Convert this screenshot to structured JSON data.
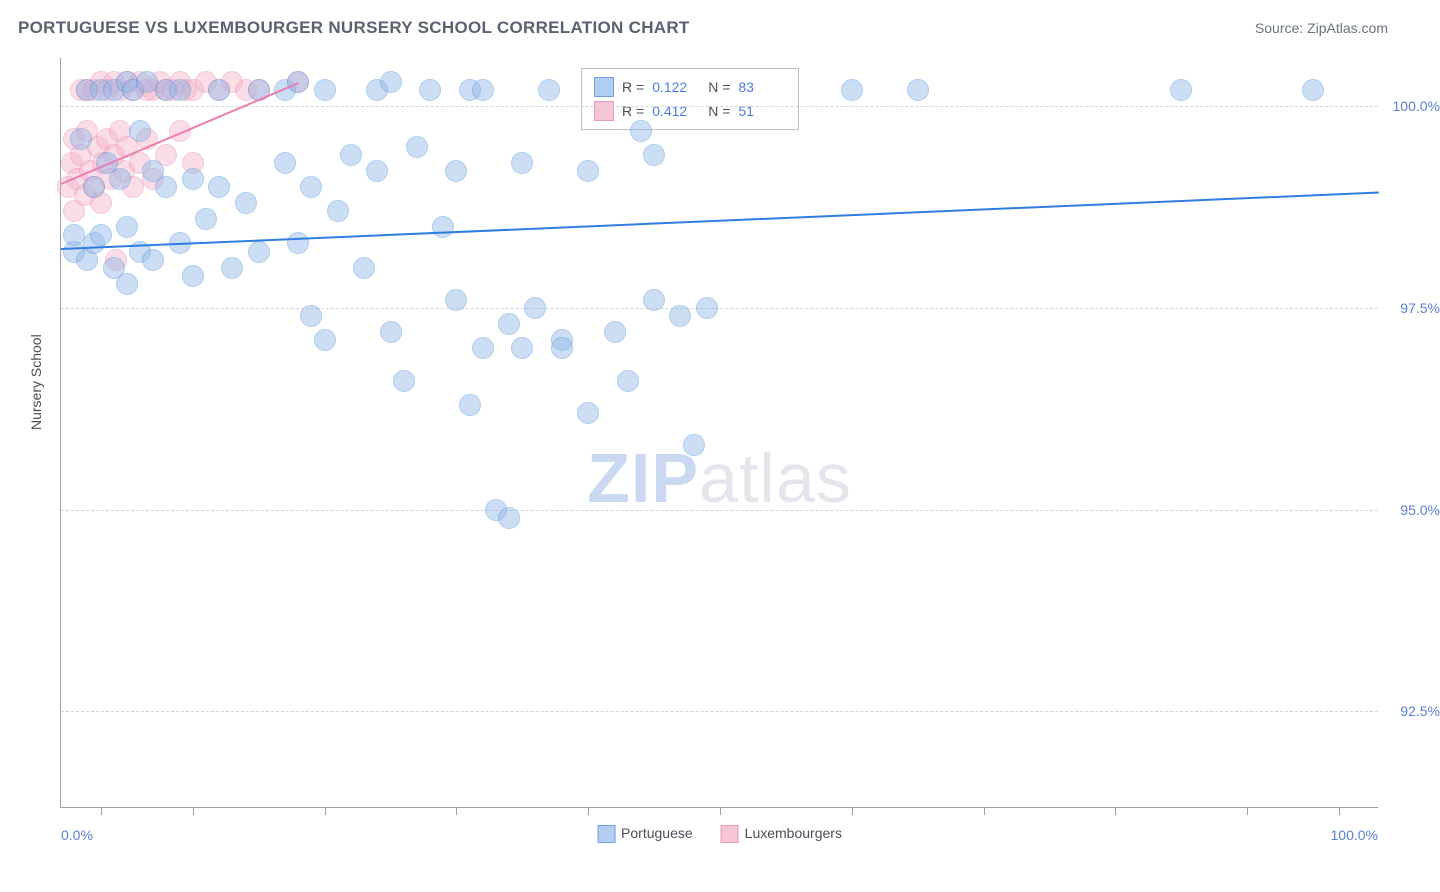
{
  "title": "PORTUGUESE VS LUXEMBOURGER NURSERY SCHOOL CORRELATION CHART",
  "source": "Source: ZipAtlas.com",
  "chart": {
    "type": "scatter",
    "ylabel": "Nursery School",
    "xlim": [
      0,
      100
    ],
    "ylim": [
      91.3,
      100.6
    ],
    "xaxis_labels": {
      "min": "0.0%",
      "max": "100.0%"
    },
    "xticks_pct": [
      3,
      10,
      20,
      30,
      40,
      50,
      60,
      70,
      80,
      90,
      97
    ],
    "yticks": [
      {
        "v": 92.5,
        "label": "92.5%"
      },
      {
        "v": 95.0,
        "label": "95.0%"
      },
      {
        "v": 97.5,
        "label": "97.5%"
      },
      {
        "v": 100.0,
        "label": "100.0%"
      }
    ],
    "background_color": "#ffffff",
    "grid_color": "#d3d6db",
    "axis_color": "#9aa0a8",
    "marker_radius": 11,
    "marker_opacity": 0.45,
    "series": [
      {
        "name": "Portuguese",
        "fill": "#8fb7e8",
        "stroke": "#4a90d9",
        "line_color": "#2f7de1",
        "R": "0.122",
        "N": "83",
        "regression": {
          "x0": 0,
          "y0": 98.25,
          "x1": 100,
          "y1": 98.95
        },
        "points": [
          [
            1,
            98.2
          ],
          [
            1,
            98.4
          ],
          [
            1.5,
            99.6
          ],
          [
            2,
            98.1
          ],
          [
            2,
            100.2
          ],
          [
            2.5,
            99.0
          ],
          [
            2.5,
            98.3
          ],
          [
            3,
            100.2
          ],
          [
            3,
            98.4
          ],
          [
            3.5,
            99.3
          ],
          [
            4,
            100.2
          ],
          [
            4,
            98.0
          ],
          [
            4.5,
            99.1
          ],
          [
            5,
            100.3
          ],
          [
            5,
            98.5
          ],
          [
            5,
            97.8
          ],
          [
            5.5,
            100.2
          ],
          [
            6,
            99.7
          ],
          [
            6,
            98.2
          ],
          [
            6.5,
            100.3
          ],
          [
            7,
            99.2
          ],
          [
            7,
            98.1
          ],
          [
            8,
            100.2
          ],
          [
            8,
            99.0
          ],
          [
            9,
            98.3
          ],
          [
            9,
            100.2
          ],
          [
            10,
            99.1
          ],
          [
            10,
            97.9
          ],
          [
            11,
            98.6
          ],
          [
            12,
            99.0
          ],
          [
            12,
            100.2
          ],
          [
            13,
            98.0
          ],
          [
            14,
            98.8
          ],
          [
            15,
            98.2
          ],
          [
            15,
            100.2
          ],
          [
            17,
            100.2
          ],
          [
            17,
            99.3
          ],
          [
            18,
            98.3
          ],
          [
            18,
            100.3
          ],
          [
            19,
            99.0
          ],
          [
            19,
            97.4
          ],
          [
            20,
            97.1
          ],
          [
            20,
            100.2
          ],
          [
            21,
            98.7
          ],
          [
            22,
            99.4
          ],
          [
            23,
            98.0
          ],
          [
            24,
            100.2
          ],
          [
            24,
            99.2
          ],
          [
            25,
            97.2
          ],
          [
            25,
            100.3
          ],
          [
            26,
            96.6
          ],
          [
            27,
            99.5
          ],
          [
            28,
            100.2
          ],
          [
            29,
            98.5
          ],
          [
            30,
            99.2
          ],
          [
            30,
            97.6
          ],
          [
            31,
            100.2
          ],
          [
            31,
            96.3
          ],
          [
            32,
            97.0
          ],
          [
            32,
            100.2
          ],
          [
            33,
            95.0
          ],
          [
            34,
            97.3
          ],
          [
            34,
            94.9
          ],
          [
            35,
            99.3
          ],
          [
            35,
            97.0
          ],
          [
            36,
            97.5
          ],
          [
            37,
            100.2
          ],
          [
            38,
            97.1
          ],
          [
            38,
            97.0
          ],
          [
            40,
            96.2
          ],
          [
            40,
            99.2
          ],
          [
            42,
            97.2
          ],
          [
            43,
            96.6
          ],
          [
            44,
            99.7
          ],
          [
            45,
            97.6
          ],
          [
            45,
            99.4
          ],
          [
            47,
            97.4
          ],
          [
            48,
            95.8
          ],
          [
            49,
            97.5
          ],
          [
            60,
            100.2
          ],
          [
            65,
            100.2
          ],
          [
            85,
            100.2
          ],
          [
            95,
            100.2
          ]
        ]
      },
      {
        "name": "Luxembourgers",
        "fill": "#f4b5cb",
        "stroke": "#e787ab",
        "line_color": "#ea7fb0",
        "R": "0.412",
        "N": "51",
        "regression": {
          "x0": 0,
          "y0": 99.05,
          "x1": 18,
          "y1": 100.3
        },
        "points": [
          [
            0.5,
            99.0
          ],
          [
            0.8,
            99.3
          ],
          [
            1,
            99.6
          ],
          [
            1,
            98.7
          ],
          [
            1.2,
            99.1
          ],
          [
            1.5,
            100.2
          ],
          [
            1.5,
            99.4
          ],
          [
            1.8,
            98.9
          ],
          [
            2,
            100.2
          ],
          [
            2,
            99.7
          ],
          [
            2.2,
            99.2
          ],
          [
            2.5,
            100.2
          ],
          [
            2.5,
            99.0
          ],
          [
            2.8,
            99.5
          ],
          [
            3,
            100.3
          ],
          [
            3,
            98.8
          ],
          [
            3.2,
            99.3
          ],
          [
            3.5,
            100.2
          ],
          [
            3.5,
            99.6
          ],
          [
            3.8,
            99.1
          ],
          [
            4,
            100.3
          ],
          [
            4,
            99.4
          ],
          [
            4.2,
            98.1
          ],
          [
            4.5,
            100.2
          ],
          [
            4.5,
            99.7
          ],
          [
            4.8,
            99.2
          ],
          [
            5,
            100.3
          ],
          [
            5,
            99.5
          ],
          [
            5.5,
            100.2
          ],
          [
            5.5,
            99.0
          ],
          [
            6,
            100.3
          ],
          [
            6,
            99.3
          ],
          [
            6.5,
            100.2
          ],
          [
            6.5,
            99.6
          ],
          [
            7,
            100.2
          ],
          [
            7,
            99.1
          ],
          [
            7.5,
            100.3
          ],
          [
            8,
            100.2
          ],
          [
            8,
            99.4
          ],
          [
            8.5,
            100.2
          ],
          [
            9,
            99.7
          ],
          [
            9,
            100.3
          ],
          [
            9.5,
            100.2
          ],
          [
            10,
            99.3
          ],
          [
            10,
            100.2
          ],
          [
            11,
            100.3
          ],
          [
            12,
            100.2
          ],
          [
            13,
            100.3
          ],
          [
            14,
            100.2
          ],
          [
            15,
            100.2
          ],
          [
            18,
            100.3
          ]
        ]
      }
    ],
    "watermark": {
      "part1": "ZIP",
      "part2": "atlas"
    },
    "legend_bottom": [
      {
        "label": "Portuguese",
        "swatch_fill": "#b3cef0",
        "swatch_stroke": "#6fa3df"
      },
      {
        "label": "Luxembourgers",
        "swatch_fill": "#f6c6d8",
        "swatch_stroke": "#e69cb9"
      }
    ],
    "stats_legend": {
      "border_color": "#bcc2cc",
      "rows": [
        {
          "swatch_fill": "#b3cef0",
          "swatch_stroke": "#6fa3df",
          "R_label": "R =",
          "R_val": "0.122",
          "N_label": "N =",
          "N_val": "83"
        },
        {
          "swatch_fill": "#f6c6d8",
          "swatch_stroke": "#e69cb9",
          "R_label": "R =",
          "R_val": "0.412",
          "N_label": "N =",
          "N_val": "51"
        }
      ]
    }
  }
}
